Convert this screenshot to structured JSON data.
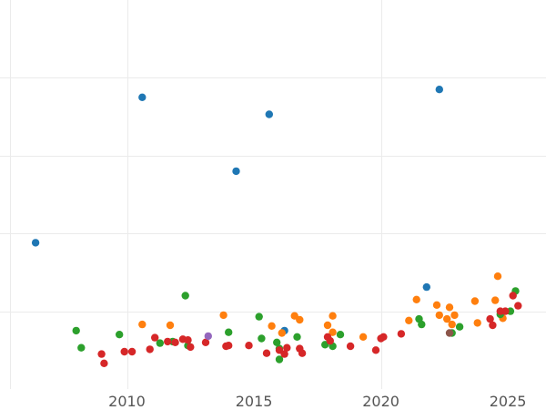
{
  "chart_data": {
    "type": "scatter",
    "title": "",
    "xlabel": "",
    "ylabel": "",
    "xlim": [
      2005.0,
      2026.5
    ],
    "ylim": [
      -1.0,
      4.0
    ],
    "x_ticks": [
      2010,
      2015,
      2020,
      2025
    ],
    "x_tick_labels": [
      "2010",
      "2015",
      "2020",
      "2025"
    ],
    "y_gridlines": [
      0,
      1,
      2,
      3
    ],
    "x_gridlines": [
      2005.4,
      2010,
      2020
    ],
    "grid": true,
    "legend": "none",
    "series": [
      {
        "color": "#1f77b4",
        "points": [
          [
            2006.4,
            0.88
          ],
          [
            2010.6,
            2.75
          ],
          [
            2014.3,
            1.8
          ],
          [
            2015.6,
            2.53
          ],
          [
            2016.2,
            -0.25
          ],
          [
            2021.8,
            0.31
          ],
          [
            2022.3,
            2.85
          ]
        ]
      },
      {
        "color": "#ff7f0e",
        "points": [
          [
            2010.6,
            -0.17
          ],
          [
            2011.7,
            -0.18
          ],
          [
            2013.8,
            -0.05
          ],
          [
            2015.7,
            -0.19
          ],
          [
            2016.1,
            -0.28
          ],
          [
            2016.6,
            -0.06
          ],
          [
            2016.8,
            -0.11
          ],
          [
            2017.9,
            -0.18
          ],
          [
            2018.1,
            -0.06
          ],
          [
            2018.1,
            -0.27
          ],
          [
            2019.3,
            -0.33
          ],
          [
            2021.1,
            -0.12
          ],
          [
            2021.4,
            0.15
          ],
          [
            2022.2,
            0.08
          ],
          [
            2022.3,
            -0.05
          ],
          [
            2022.6,
            -0.1
          ],
          [
            2022.7,
            0.05
          ],
          [
            2022.8,
            -0.17
          ],
          [
            2022.9,
            -0.05
          ],
          [
            2023.7,
            0.13
          ],
          [
            2023.8,
            -0.15
          ],
          [
            2024.5,
            0.14
          ],
          [
            2024.6,
            0.45
          ],
          [
            2024.8,
            -0.09
          ]
        ]
      },
      {
        "color": "#2ca02c",
        "points": [
          [
            2008.0,
            -0.25
          ],
          [
            2008.2,
            -0.47
          ],
          [
            2009.7,
            -0.3
          ],
          [
            2011.3,
            -0.41
          ],
          [
            2011.8,
            -0.39
          ],
          [
            2012.3,
            0.2
          ],
          [
            2012.4,
            -0.44
          ],
          [
            2014.0,
            -0.27
          ],
          [
            2015.2,
            -0.07
          ],
          [
            2015.3,
            -0.35
          ],
          [
            2015.9,
            -0.4
          ],
          [
            2016.0,
            -0.48
          ],
          [
            2016.0,
            -0.62
          ],
          [
            2016.7,
            -0.33
          ],
          [
            2017.8,
            -0.43
          ],
          [
            2018.1,
            -0.45
          ],
          [
            2018.4,
            -0.3
          ],
          [
            2021.5,
            -0.1
          ],
          [
            2021.6,
            -0.17
          ],
          [
            2022.8,
            -0.28
          ],
          [
            2023.1,
            -0.2
          ],
          [
            2024.7,
            -0.04
          ],
          [
            2025.1,
            0.0
          ],
          [
            2025.3,
            0.26
          ]
        ]
      },
      {
        "color": "#d62728",
        "points": [
          [
            2009.0,
            -0.55
          ],
          [
            2009.1,
            -0.67
          ],
          [
            2009.9,
            -0.52
          ],
          [
            2010.2,
            -0.52
          ],
          [
            2010.9,
            -0.49
          ],
          [
            2011.1,
            -0.34
          ],
          [
            2011.6,
            -0.39
          ],
          [
            2011.9,
            -0.4
          ],
          [
            2012.2,
            -0.36
          ],
          [
            2012.4,
            -0.37
          ],
          [
            2012.5,
            -0.46
          ],
          [
            2013.1,
            -0.4
          ],
          [
            2013.9,
            -0.45
          ],
          [
            2014.0,
            -0.44
          ],
          [
            2014.8,
            -0.44
          ],
          [
            2015.5,
            -0.54
          ],
          [
            2016.0,
            -0.5
          ],
          [
            2016.2,
            -0.55
          ],
          [
            2016.3,
            -0.47
          ],
          [
            2016.8,
            -0.48
          ],
          [
            2016.9,
            -0.54
          ],
          [
            2017.9,
            -0.33
          ],
          [
            2018.0,
            -0.38
          ],
          [
            2018.8,
            -0.45
          ],
          [
            2019.8,
            -0.5
          ],
          [
            2020.0,
            -0.35
          ],
          [
            2020.1,
            -0.33
          ],
          [
            2020.8,
            -0.29
          ],
          [
            2024.3,
            -0.1
          ],
          [
            2024.4,
            -0.18
          ],
          [
            2024.7,
            0.0
          ],
          [
            2024.9,
            0.0
          ],
          [
            2025.2,
            0.2
          ],
          [
            2025.4,
            0.07
          ]
        ]
      },
      {
        "color": "#9467bd",
        "points": [
          [
            2013.2,
            -0.32
          ]
        ]
      },
      {
        "color": "#8c564b",
        "points": [
          [
            2022.7,
            -0.28
          ]
        ]
      }
    ]
  }
}
